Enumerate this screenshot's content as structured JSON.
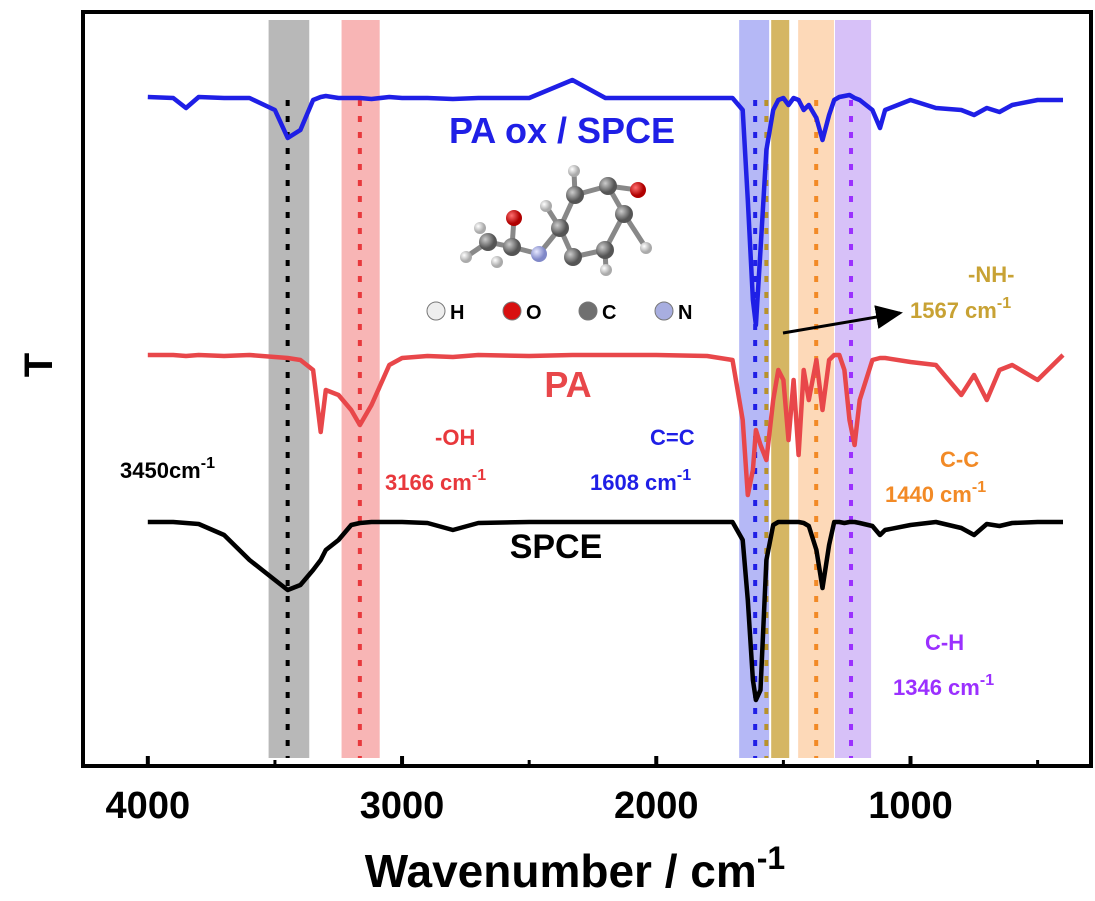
{
  "chart_data": {
    "type": "line",
    "xlabel": "Wavenumber / cm",
    "xlabel_sup": "-1",
    "ylabel": "T",
    "xlim": [
      4255,
      290
    ],
    "ylim": [
      0,
      754
    ],
    "xticks": [
      4000,
      3000,
      2000,
      1000
    ],
    "minor_xticks": [
      3500,
      2500,
      1500,
      500
    ],
    "x": [
      4000,
      3900,
      3850,
      3800,
      3700,
      3600,
      3500,
      3450,
      3400,
      3350,
      3320,
      3300,
      3250,
      3200,
      3166,
      3120,
      3050,
      3000,
      2900,
      2800,
      2700,
      2500,
      2330,
      2200,
      2000,
      1800,
      1700,
      1660,
      1640,
      1620,
      1608,
      1590,
      1567,
      1540,
      1520,
      1500,
      1480,
      1460,
      1440,
      1420,
      1400,
      1370,
      1346,
      1320,
      1300,
      1280,
      1260,
      1240,
      1220,
      1200,
      1150,
      1120,
      1100,
      1000,
      900,
      800,
      750,
      700,
      650,
      600,
      500,
      400
    ],
    "series": [
      {
        "name": "PA ox / SPCE",
        "color": "#1f1fe6",
        "values": [
          669,
          668,
          658,
          669,
          668,
          668,
          656,
          628,
          636,
          666,
          669,
          670,
          668,
          668,
          668,
          667,
          669,
          668,
          668,
          667,
          668,
          668,
          686,
          668,
          668,
          668,
          668,
          656,
          566,
          466,
          441,
          516,
          616,
          656,
          666,
          668,
          661,
          668,
          666,
          656,
          661,
          648,
          626,
          651,
          666,
          669,
          670,
          671,
          668,
          666,
          656,
          638,
          656,
          666,
          658,
          656,
          651,
          658,
          654,
          661,
          666,
          666
        ]
      },
      {
        "name": "PA",
        "color": "#e8474a",
        "values": [
          411,
          411,
          410,
          411,
          410,
          411,
          409,
          408,
          406,
          396,
          334,
          376,
          371,
          356,
          341,
          361,
          401,
          408,
          410,
          409,
          411,
          410,
          411,
          411,
          411,
          410,
          406,
          346,
          271,
          296,
          336,
          321,
          306,
          366,
          396,
          386,
          326,
          386,
          311,
          396,
          366,
          406,
          356,
          406,
          411,
          411,
          396,
          346,
          321,
          366,
          406,
          408,
          408,
          404,
          401,
          371,
          391,
          366,
          396,
          401,
          386,
          411
        ]
      },
      {
        "name": "SPCE",
        "color": "#000000",
        "values": [
          244,
          244,
          243,
          242,
          231,
          206,
          186,
          176,
          181,
          196,
          206,
          216,
          226,
          241,
          243,
          244,
          244,
          244,
          243,
          236,
          243,
          244,
          244,
          244,
          244,
          244,
          244,
          226,
          166,
          86,
          66,
          76,
          206,
          241,
          244,
          244,
          244,
          244,
          244,
          243,
          240,
          216,
          178,
          221,
          244,
          244,
          243,
          244,
          244,
          243,
          240,
          231,
          236,
          241,
          244,
          238,
          231,
          242,
          240,
          243,
          244,
          244
        ]
      }
    ],
    "bands": [
      {
        "from": 3525,
        "to": 3365,
        "line": 3450,
        "color": "#a6a6a6",
        "line_color": "#000000"
      },
      {
        "from": 3238,
        "to": 3088,
        "line": 3166,
        "color": "#f6a3a3",
        "line_color": "#e8383c"
      },
      {
        "from": 1674,
        "to": 1556,
        "line": 1611,
        "color": "#a3a6f4",
        "line_color": "#1f1fe6"
      },
      {
        "from": 1548,
        "to": 1477,
        "line": 1567,
        "color": "#caa43c",
        "line_color": "#b8922a"
      },
      {
        "from": 1442,
        "to": 1301,
        "line": 1371,
        "color": "#fcd0a6",
        "line_color": "#f28a26"
      },
      {
        "from": 1297,
        "to": 1155,
        "line": 1234,
        "color": "#cdb2f6",
        "line_color": "#9b30ff"
      }
    ],
    "annotations": [
      {
        "text": "3450cm",
        "sup": "-1",
        "color": "#000000"
      },
      {
        "text": "-OH",
        "color": "#e8383c"
      },
      {
        "text": "3166 cm",
        "sup": "-1",
        "color": "#e8383c"
      },
      {
        "text": "C=C",
        "color": "#1f1fe6"
      },
      {
        "text": "1608 cm",
        "sup": "-1",
        "color": "#1f1fe6"
      },
      {
        "text": "-NH-",
        "color": "#c8a234"
      },
      {
        "text": "1567 cm",
        "sup": "-1",
        "color": "#c8a234"
      },
      {
        "text": "C-C",
        "color": "#f28a26"
      },
      {
        "text": "1440 cm",
        "sup": "-1",
        "color": "#f28a26"
      },
      {
        "text": "C-H",
        "color": "#9b30ff"
      },
      {
        "text": "1346 cm",
        "sup": "-1",
        "color": "#9b30ff"
      }
    ],
    "atom_legend": [
      {
        "label": "H",
        "color": "#eeeeee"
      },
      {
        "label": "O",
        "color": "#d81010"
      },
      {
        "label": "C",
        "color": "#707070"
      },
      {
        "label": "N",
        "color": "#a8aee0"
      }
    ]
  }
}
